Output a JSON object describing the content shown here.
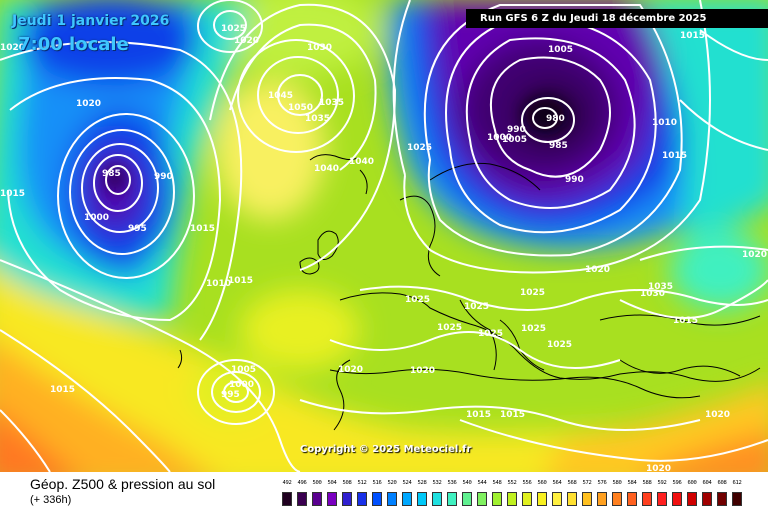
{
  "header": {
    "date": "Jeudi 1 janvier 2026",
    "time": "7:00 locale",
    "run": "Run GFS 6 Z du Jeudi 18 décembre 2025"
  },
  "footer": {
    "field": "Géop. Z500 & pression au sol",
    "step": "(+ 336h)",
    "copyright": "Copyright © 2025 Meteociel.fr"
  },
  "legend": {
    "values": [
      "492",
      "496",
      "500",
      "504",
      "508",
      "512",
      "516",
      "520",
      "524",
      "528",
      "532",
      "536",
      "540",
      "544",
      "548",
      "552",
      "556",
      "560",
      "564",
      "568",
      "572",
      "576",
      "580",
      "584",
      "588",
      "592",
      "596",
      "600",
      "604",
      "608",
      "612"
    ],
    "colors": [
      "#200020",
      "#3a0050",
      "#5a0090",
      "#7a00c0",
      "#3020d0",
      "#1830e8",
      "#0050ff",
      "#0080ff",
      "#00a8ff",
      "#00c8f8",
      "#20e0e0",
      "#40f0c0",
      "#60f090",
      "#80f060",
      "#a0f030",
      "#c0f020",
      "#e0f020",
      "#f8f020",
      "#fff040",
      "#ffe030",
      "#ffc020",
      "#ffa020",
      "#ff8020",
      "#ff6020",
      "#ff4020",
      "#ff2020",
      "#f01010",
      "#d00000",
      "#a00000",
      "#700000",
      "#400000"
    ]
  },
  "isobar_labels": [
    "1020",
    "1015",
    "1020",
    "1025",
    "1030",
    "1035",
    "1040",
    "1050",
    "1045",
    "1040",
    "1035",
    "1005",
    "1005",
    "980",
    "990",
    "1000",
    "985",
    "990",
    "1010",
    "1015",
    "1020",
    "1025",
    "985",
    "990",
    "1000",
    "995",
    "1015",
    "1010",
    "1015",
    "1025",
    "1025",
    "1025",
    "1025",
    "1025",
    "1025",
    "1025",
    "1035",
    "1030",
    "1020",
    "1020",
    "1020",
    "1005",
    "1000",
    "995",
    "1015",
    "1015",
    "1015",
    "1020",
    "1020",
    "1020",
    "1015",
    "1015"
  ]
}
